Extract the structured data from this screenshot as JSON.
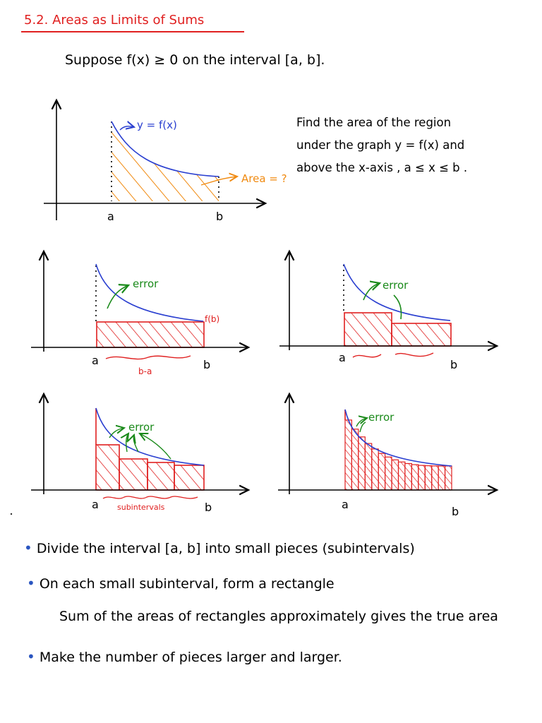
{
  "title": "5.2. Areas as Limits of Sums",
  "intro": "Suppose f(x) ≥ 0 on the interval [a, b].",
  "main_graph": {
    "curve_label": "y = f(x)",
    "area_label": "Area = ?",
    "left_label": "a",
    "right_label": "b"
  },
  "description": {
    "line1": "Find the area of the region",
    "line2": "under the graph y = f(x) and",
    "line3": "above the x-axis , a ≤ x ≤ b ."
  },
  "panels": {
    "p1": {
      "error": "error",
      "fb": "f(b)",
      "width": "b-a",
      "a": "a",
      "b": "b"
    },
    "p2": {
      "error": "error",
      "a": "a",
      "b": "b"
    },
    "p3": {
      "error": "error",
      "sub": "subintervals",
      "a": "a",
      "b": "b"
    },
    "p4": {
      "error": "error",
      "a": "a",
      "b": "b"
    }
  },
  "bullets": {
    "b1": "Divide the interval [a, b] into small pieces (subintervals)",
    "b2": "On each small subinterval, form a rectangle",
    "b2_sub": "Sum of the areas of rectangles approximately gives the true area",
    "b3": "Make the number of pieces larger and larger."
  },
  "colors": {
    "curve": "#2a3fd0",
    "area": "#f08a10",
    "rect": "#e02020",
    "error": "#1a8a1a",
    "title": "#e02020"
  }
}
